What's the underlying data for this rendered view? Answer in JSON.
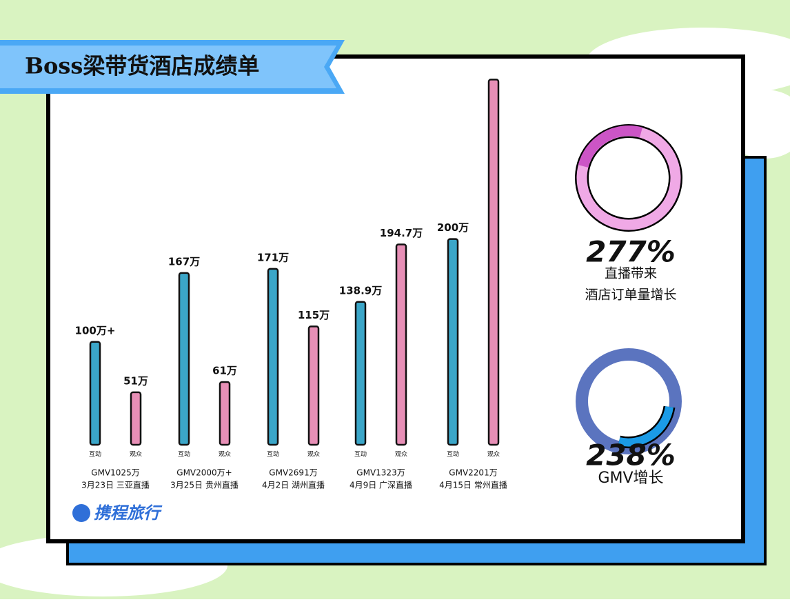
{
  "chart_data": {
    "type": "bar",
    "title": "Boss梁带货酒店成绩单",
    "categories": [
      "3月23日 三亚直播",
      "3月25日 贵州直播",
      "4月2日 湖州直播",
      "4月9日 广深直播",
      "4月15日 常州直播"
    ],
    "gmv": [
      "GMV1025万",
      "GMV2000万+",
      "GMV2691万",
      "GMV1323万",
      "GMV2201万"
    ],
    "series": [
      {
        "name": "互动",
        "color": "#3ba6c8",
        "values": [
          100,
          167,
          171,
          138.9,
          200
        ],
        "value_labels": [
          "100万+",
          "167万",
          "171万",
          "138.9万",
          "200万"
        ]
      },
      {
        "name": "观众",
        "color": "#e78fb6",
        "values": [
          51,
          61,
          115,
          194.7,
          355
        ],
        "value_labels": [
          "51万",
          "61万",
          "115万",
          "194.7万",
          null
        ]
      }
    ],
    "ylim": [
      0,
      370
    ],
    "stats": [
      {
        "value": {
          "value": 277,
          "label": "277%"
        },
        "caption": [
          "直播带来",
          "酒店订单量增长"
        ]
      },
      {
        "value": {
          "value": 238,
          "label": "238%"
        },
        "caption": [
          "GMV增长"
        ]
      }
    ],
    "logo": "携程旅行"
  }
}
